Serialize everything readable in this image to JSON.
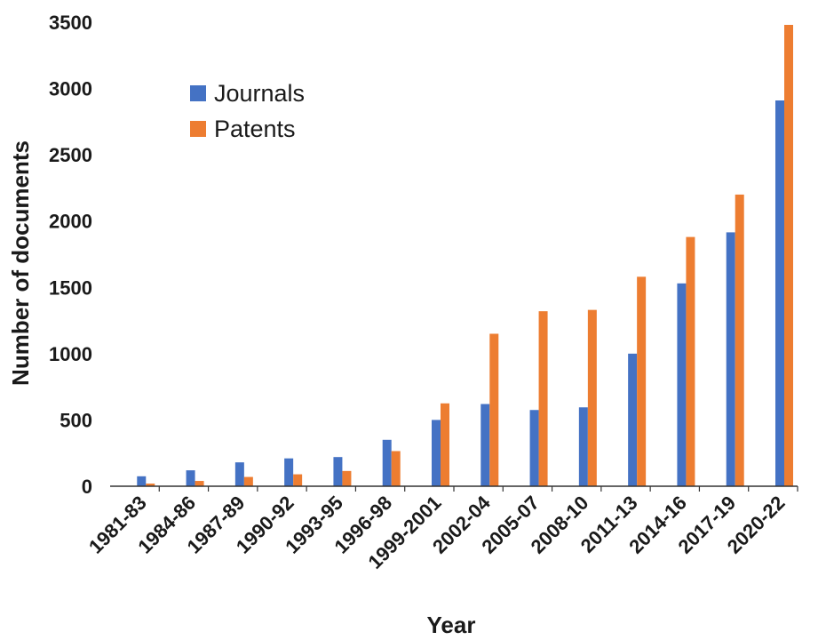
{
  "chart_data": {
    "type": "bar",
    "title": "",
    "xlabel": "Year",
    "ylabel": "Number of documents",
    "ylim": [
      0,
      3500
    ],
    "yticks": [
      0,
      500,
      1000,
      1500,
      2000,
      2500,
      3000,
      3500
    ],
    "grid": false,
    "legend_position": "top-left",
    "categories": [
      "1981-83",
      "1984-86",
      "1987-89",
      "1990-92",
      "1993-95",
      "1996-98",
      "1999-2001",
      "2002-04",
      "2005-07",
      "2008-10",
      "2011-13",
      "2014-16",
      "2017-19",
      "2020-22"
    ],
    "series": [
      {
        "name": "Journals",
        "color": "#4472c4",
        "values": [
          75,
          120,
          180,
          210,
          220,
          350,
          500,
          620,
          575,
          595,
          1000,
          1530,
          1915,
          2910
        ]
      },
      {
        "name": "Patents",
        "color": "#ed7d31",
        "values": [
          20,
          40,
          70,
          90,
          115,
          265,
          625,
          1150,
          1320,
          1330,
          1580,
          1880,
          2200,
          3480
        ]
      }
    ]
  }
}
